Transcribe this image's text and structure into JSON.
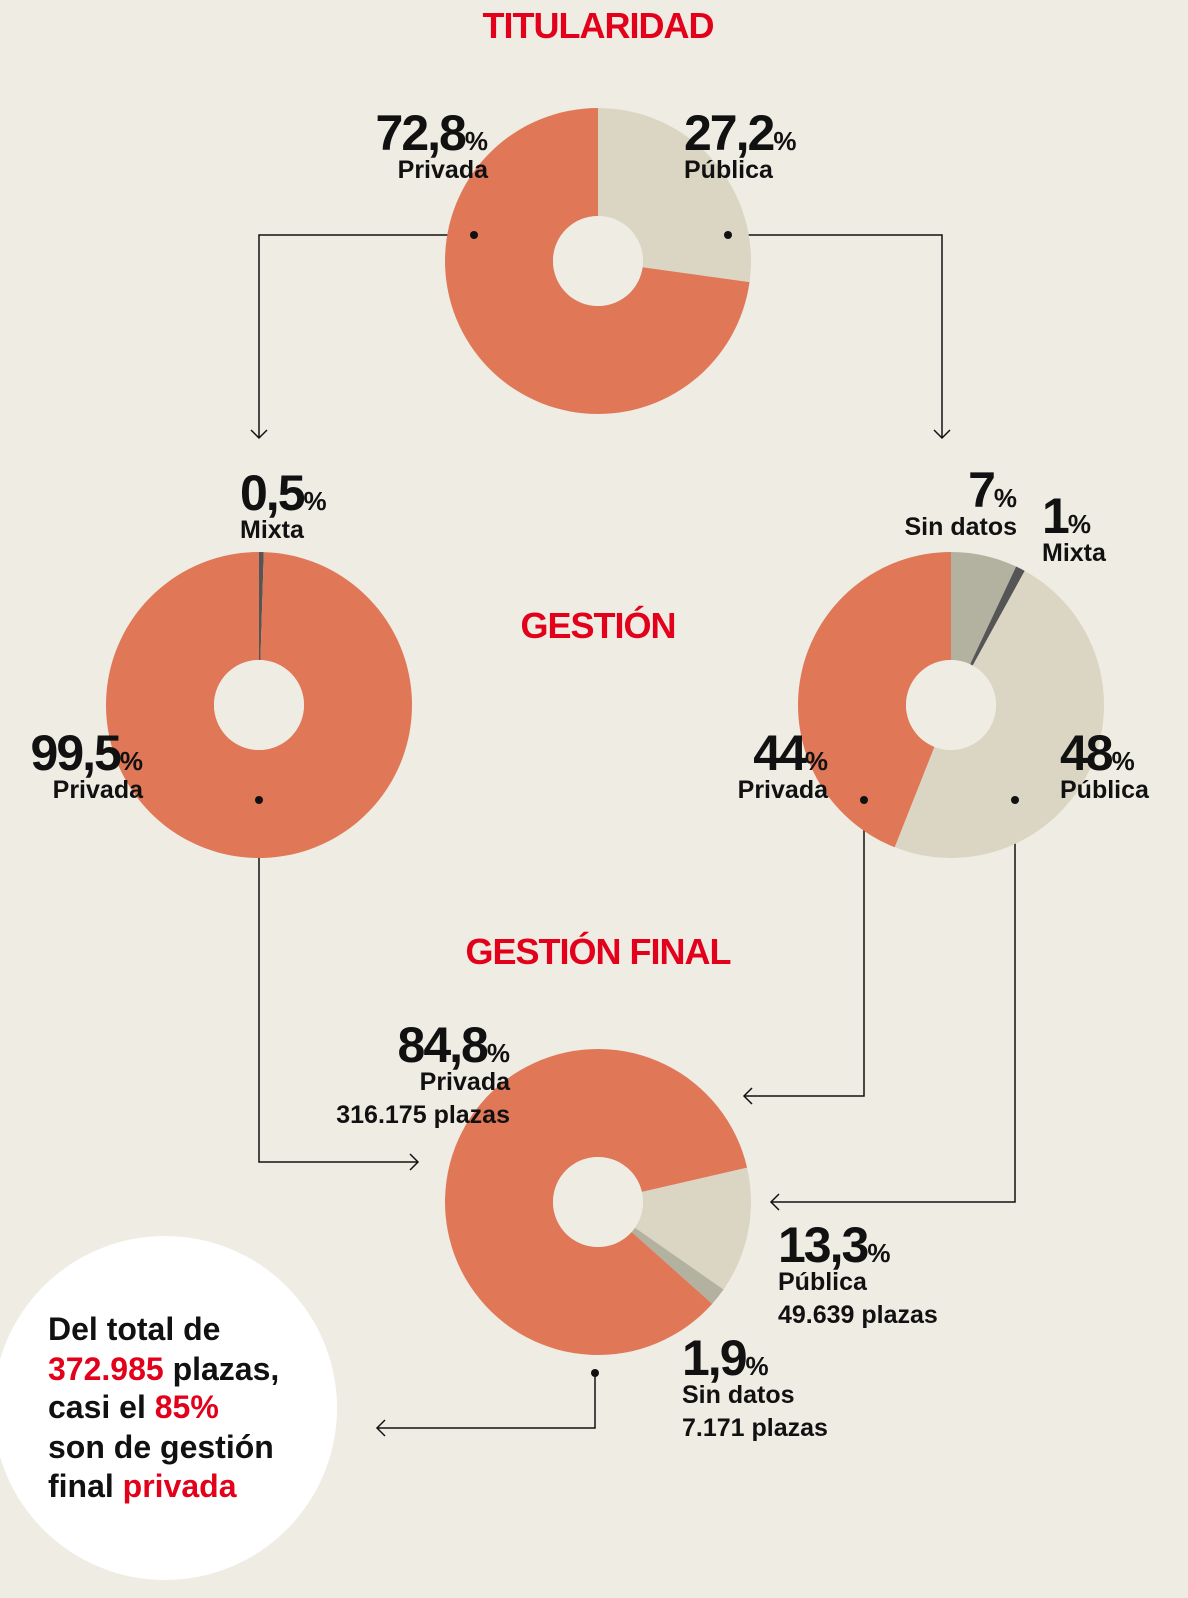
{
  "sections": [
    "TITULARIDAD",
    "GESTIÓN",
    "GESTIÓN FINAL"
  ],
  "chart_data": [
    {
      "type": "pie",
      "categories": [
        "Pública",
        "Privada"
      ],
      "values": [
        27.2,
        72.8
      ],
      "value_labels": [
        "27,2",
        "72,8"
      ],
      "unit": "%",
      "colors": [
        "#dbd6c3",
        "#e07858"
      ]
    },
    {
      "type": "pie",
      "categories": [
        "Mixta",
        "Privada"
      ],
      "values": [
        0.5,
        99.5
      ],
      "value_labels": [
        "0,5",
        "99,5"
      ],
      "unit": "%",
      "colors": [
        "#555555",
        "#e07858"
      ]
    },
    {
      "type": "pie",
      "categories": [
        "Sin datos",
        "Mixta",
        "Pública",
        "Privada"
      ],
      "values": [
        7,
        1,
        48,
        44
      ],
      "unit": "%",
      "colors": [
        "#b3b2a0",
        "#555555",
        "#dbd6c3",
        "#e07858"
      ]
    },
    {
      "type": "pie",
      "categories": [
        "Pública",
        "Sin datos",
        "Privada"
      ],
      "values": [
        13.3,
        1.9,
        84.8
      ],
      "value_labels": [
        "13,3",
        "1,9",
        "84,8"
      ],
      "unit": "%",
      "details": [
        "49.639 plazas",
        "7.171 plazas",
        "316.175 plazas"
      ],
      "colors": [
        "#dbd6c3",
        "#b3b2a0",
        "#e07858"
      ]
    }
  ],
  "callout": {
    "highlight_color": "#e2001a",
    "lines": [
      [
        {
          "text": "Del total de"
        }
      ],
      [
        {
          "text": "372.985",
          "highlight": true
        },
        {
          "text": " plazas,"
        }
      ],
      [
        {
          "text": "casi el "
        },
        {
          "text": "85%",
          "highlight": true
        }
      ],
      [
        {
          "text": "son de gestión"
        }
      ],
      [
        {
          "text": "final "
        },
        {
          "text": "privada",
          "highlight": true
        }
      ]
    ]
  }
}
